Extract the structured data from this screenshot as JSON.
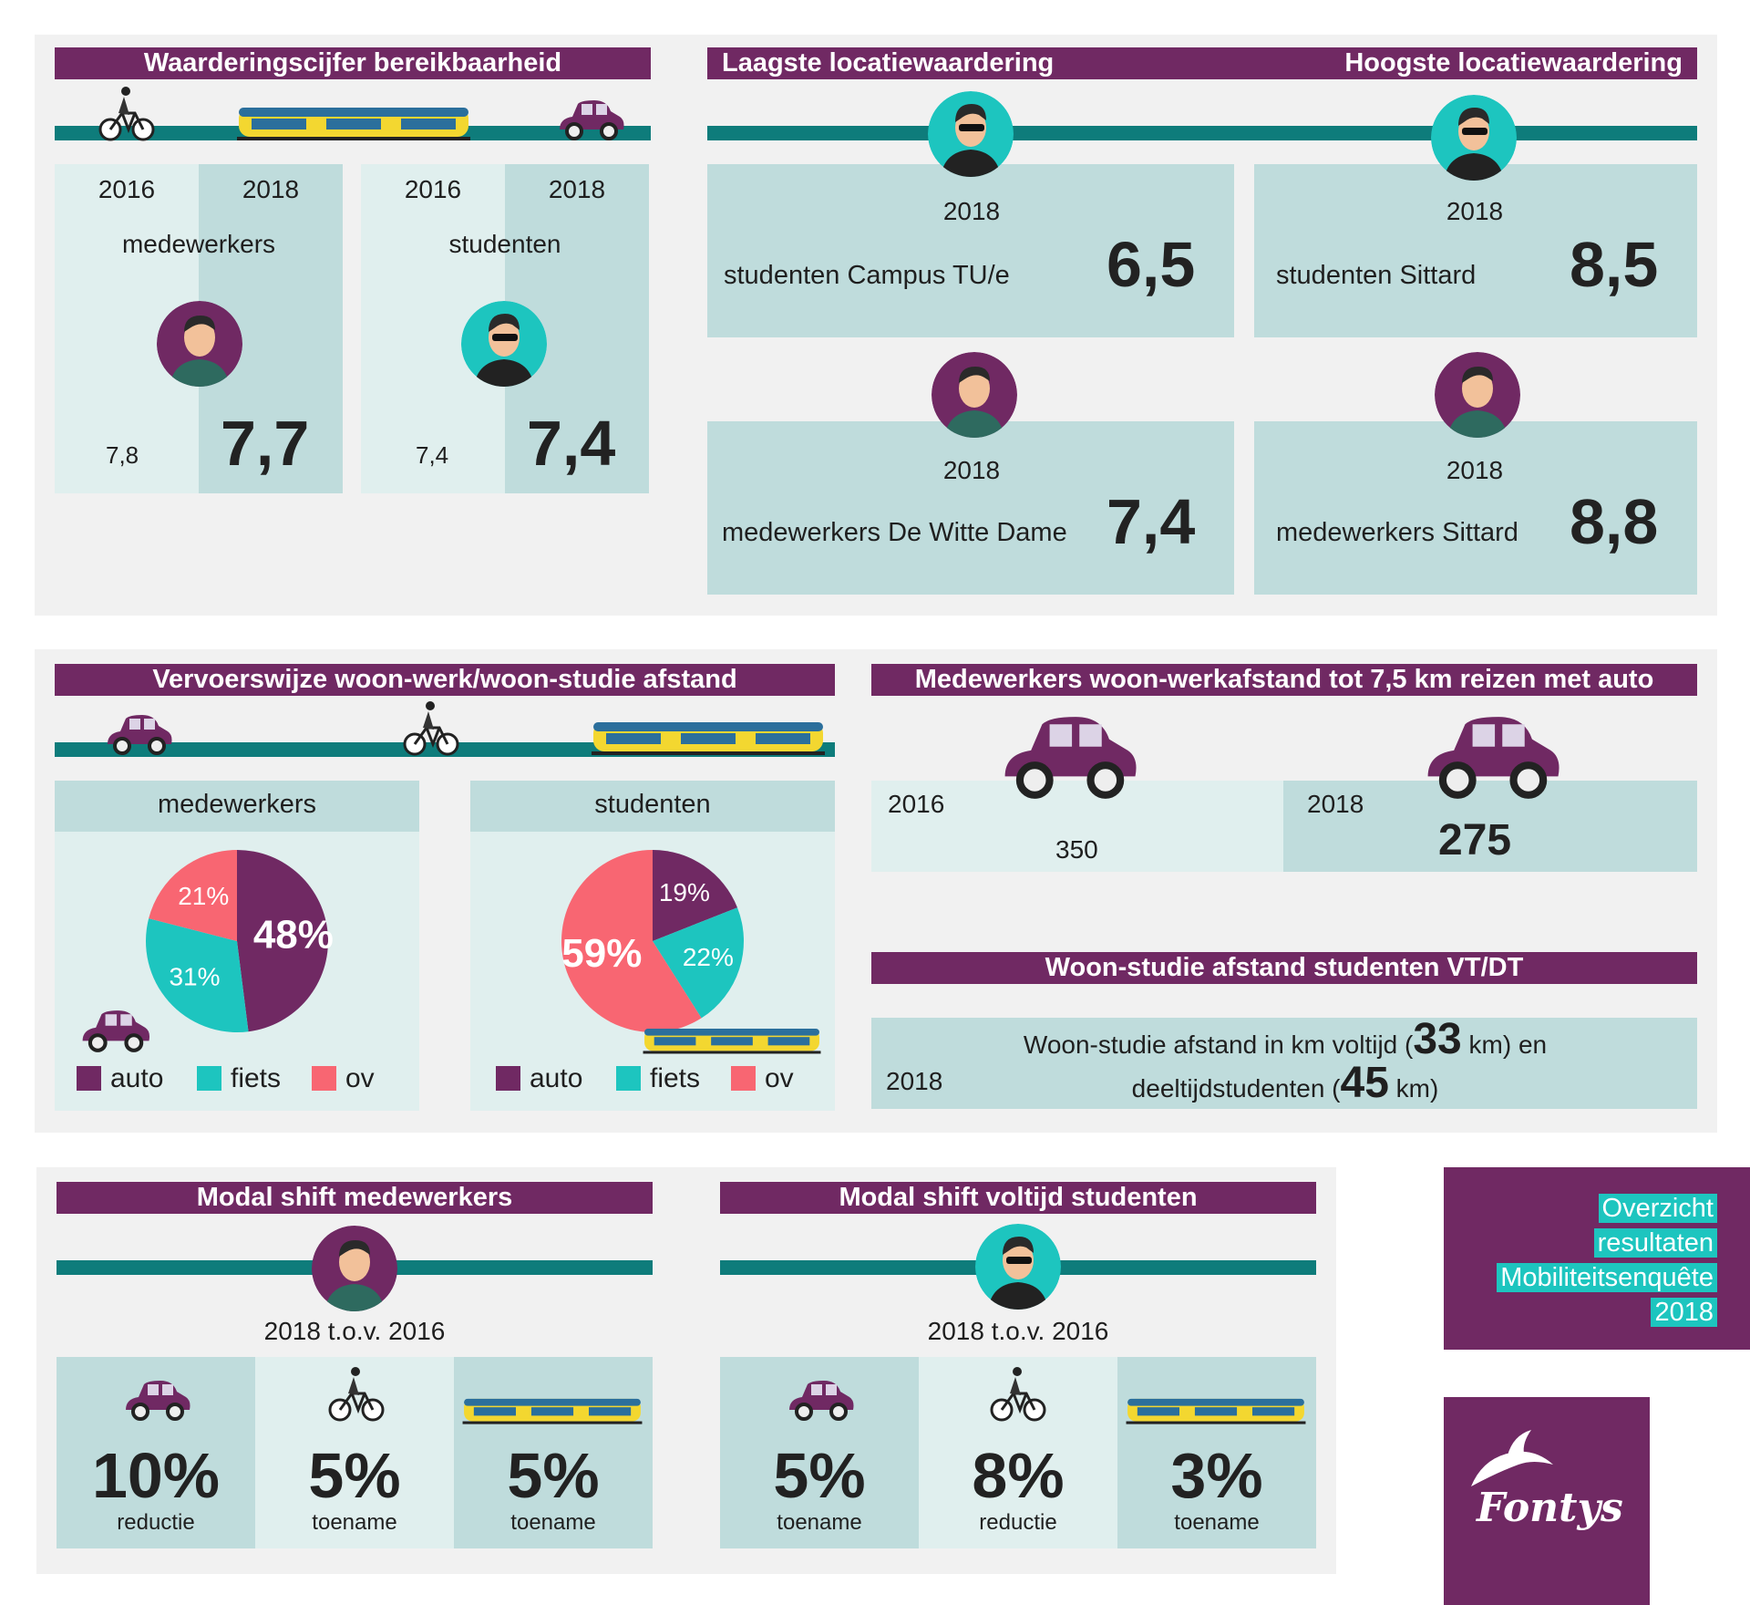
{
  "colors": {
    "purple": "#702963",
    "teal": "#0e7c7b",
    "cyan": "#1dc5bf",
    "coral": "#f86672",
    "light": "#e0efee",
    "mid": "#bfdcdc"
  },
  "bereik": {
    "title": "Waarderingscijfer bereikbaarheid",
    "medewerkers": {
      "y1": "2016",
      "y2": "2018",
      "label": "medewerkers",
      "v1": "7,8",
      "v2": "7,7"
    },
    "studenten": {
      "y1": "2016",
      "y2": "2018",
      "label": "studenten",
      "v1": "7,4",
      "v2": "7,4"
    }
  },
  "locatie": {
    "title_left": "Laagste locatiewaardering",
    "title_right": "Hoogste locatiewaardering",
    "cards": [
      {
        "year": "2018",
        "label": "studenten Campus TU/e",
        "value": "6,5"
      },
      {
        "year": "2018",
        "label": "studenten Sittard",
        "value": "8,5"
      },
      {
        "year": "2018",
        "label": "medewerkers De Witte Dame",
        "value": "7,4"
      },
      {
        "year": "2018",
        "label": "medewerkers Sittard",
        "value": "8,8"
      }
    ]
  },
  "vervoer": {
    "title": "Vervoerswijze woon-werk/woon-studie afstand",
    "medewerkers": {
      "label": "medewerkers"
    },
    "studenten": {
      "label": "studenten"
    },
    "legend": [
      "auto",
      "fiets",
      "ov"
    ]
  },
  "chart_data": [
    {
      "type": "pie",
      "title": "medewerkers",
      "categories": [
        "auto",
        "fiets",
        "ov"
      ],
      "values": [
        48,
        31,
        21
      ],
      "labels": [
        "48%",
        "31%",
        "21%"
      ],
      "colors": [
        "#702963",
        "#1dc5bf",
        "#f86672"
      ]
    },
    {
      "type": "pie",
      "title": "studenten",
      "categories": [
        "auto",
        "fiets",
        "ov"
      ],
      "values": [
        19,
        22,
        59
      ],
      "labels": [
        "19%",
        "22%",
        "59%"
      ],
      "colors": [
        "#702963",
        "#1dc5bf",
        "#f86672"
      ]
    }
  ],
  "auto75": {
    "title": "Medewerkers woon-werkafstand tot 7,5 km reizen met auto",
    "y1": "2016",
    "v1": "350",
    "y2": "2018",
    "v2": "275"
  },
  "studie": {
    "title": "Woon-studie afstand studenten VT/DT",
    "year": "2018",
    "line1_pre": "Woon-studie afstand in km voltijd (",
    "line1_num": "33",
    "line1_post": " km) en",
    "line2_pre": "deeltijdstudenten (",
    "line2_num": "45",
    "line2_post": " km)"
  },
  "modal_mw": {
    "title": "Modal shift medewerkers",
    "sub": "2018 t.o.v. 2016",
    "cells": [
      {
        "value": "10%",
        "label": "reductie"
      },
      {
        "value": "5%",
        "label": "toename"
      },
      {
        "value": "5%",
        "label": "toename"
      }
    ]
  },
  "modal_st": {
    "title": "Modal shift voltijd studenten",
    "sub": "2018 t.o.v. 2016",
    "cells": [
      {
        "value": "5%",
        "label": "toename"
      },
      {
        "value": "8%",
        "label": "reductie"
      },
      {
        "value": "3%",
        "label": "toename"
      }
    ]
  },
  "badge": {
    "lines": [
      "Overzicht",
      "resultaten",
      "Mobiliteitsenquête",
      "2018"
    ]
  },
  "logo": {
    "text": "Fontys"
  }
}
